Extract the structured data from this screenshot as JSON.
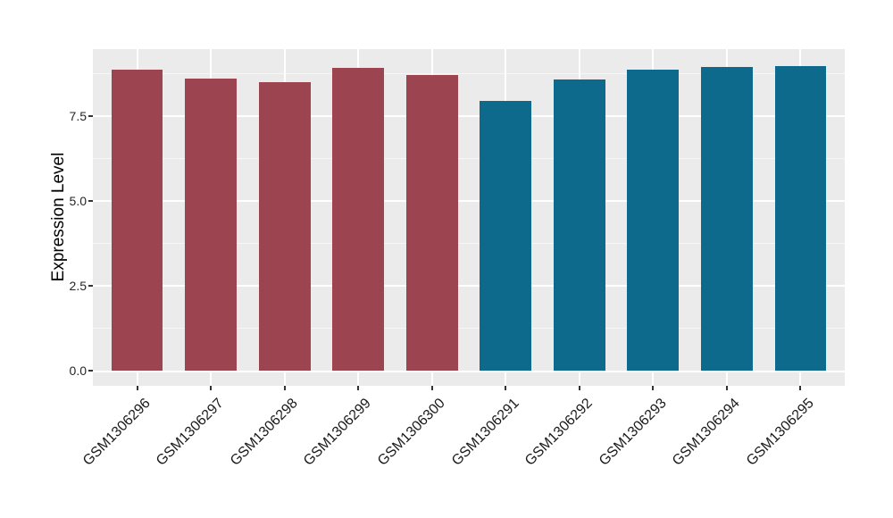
{
  "chart_data": {
    "type": "bar",
    "title": "",
    "xlabel": "",
    "ylabel": "Expression Level",
    "categories": [
      "GSM1306296",
      "GSM1306297",
      "GSM1306298",
      "GSM1306299",
      "GSM1306300",
      "GSM1306291",
      "GSM1306292",
      "GSM1306293",
      "GSM1306294",
      "GSM1306295"
    ],
    "values": [
      8.88,
      8.6,
      8.51,
      8.93,
      8.72,
      7.94,
      8.57,
      8.86,
      8.95,
      8.97
    ],
    "bar_colors": [
      "#9C4450",
      "#9C4450",
      "#9C4450",
      "#9C4450",
      "#9C4450",
      "#0D6A8C",
      "#0D6A8C",
      "#0D6A8C",
      "#0D6A8C",
      "#0D6A8C"
    ],
    "group_palette": [
      "#9C4450",
      "#0D6A8C"
    ],
    "ylim": [
      -0.45,
      9.47
    ],
    "y_major_ticks": [
      0.0,
      2.5,
      5.0,
      7.5
    ],
    "y_tick_labels": [
      "0.0",
      "2.5",
      "5.0",
      "7.5"
    ],
    "y_minor_ticks": [
      1.25,
      3.75,
      6.25,
      8.75
    ],
    "grid": true,
    "legend": "none",
    "panel_bg": "#EBEBEB",
    "grid_color": "#FFFFFF",
    "tick_mark_color": "#333333"
  }
}
